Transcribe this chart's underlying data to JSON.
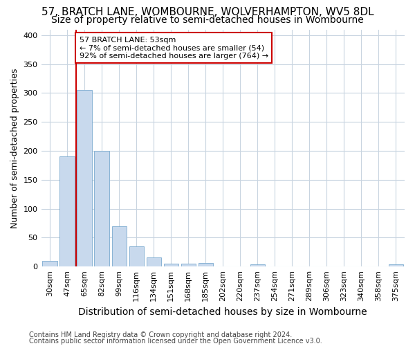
{
  "title": "57, BRATCH LANE, WOMBOURNE, WOLVERHAMPTON, WV5 8DL",
  "subtitle": "Size of property relative to semi-detached houses in Wombourne",
  "xlabel": "Distribution of semi-detached houses by size in Wombourne",
  "ylabel": "Number of semi-detached properties",
  "footnote1": "Contains HM Land Registry data © Crown copyright and database right 2024.",
  "footnote2": "Contains public sector information licensed under the Open Government Licence v3.0.",
  "categories": [
    "30sqm",
    "47sqm",
    "65sqm",
    "82sqm",
    "99sqm",
    "116sqm",
    "134sqm",
    "151sqm",
    "168sqm",
    "185sqm",
    "202sqm",
    "220sqm",
    "237sqm",
    "254sqm",
    "271sqm",
    "289sqm",
    "306sqm",
    "323sqm",
    "340sqm",
    "358sqm",
    "375sqm"
  ],
  "values": [
    10,
    190,
    305,
    200,
    70,
    35,
    16,
    5,
    5,
    6,
    0,
    0,
    4,
    0,
    0,
    0,
    0,
    0,
    0,
    0,
    4
  ],
  "bar_color": "#c8d9ed",
  "bar_edge_color": "#7aaacf",
  "vline_pos": 1.5,
  "vline_color": "#cc0000",
  "annotation_title": "57 BRATCH LANE: 53sqm",
  "annotation_line1": "← 7% of semi-detached houses are smaller (54)",
  "annotation_line2": "92% of semi-detached houses are larger (764) →",
  "annotation_box_facecolor": "#ffffff",
  "annotation_box_edgecolor": "#cc0000",
  "ylim": [
    0,
    410
  ],
  "yticks": [
    0,
    50,
    100,
    150,
    200,
    250,
    300,
    350,
    400
  ],
  "fig_background": "#ffffff",
  "plot_background": "#ffffff",
  "grid_color": "#c8d4e0",
  "title_fontsize": 11,
  "subtitle_fontsize": 10,
  "ylabel_fontsize": 9,
  "xlabel_fontsize": 10,
  "tick_fontsize": 8,
  "footnote_fontsize": 7
}
